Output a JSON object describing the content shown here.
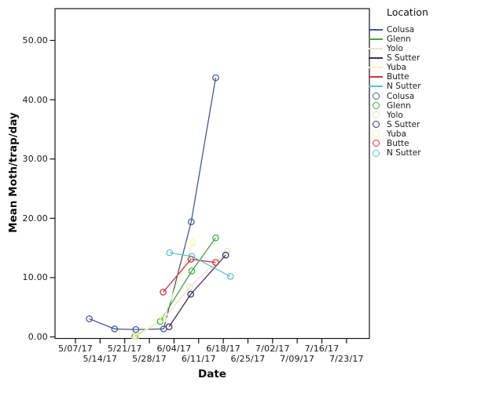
{
  "window": {
    "background": "#ffffff"
  },
  "chart_data": {
    "type": "line",
    "title": "",
    "xlabel": "Date",
    "ylabel": "Mean Moth/trap/day",
    "legend_title": "Location",
    "legend_position": "right-outside",
    "grid": false,
    "marker": "open-circle",
    "x_unit": "tick index: 0 = 5/07/17, 1 unit = 7 days",
    "x_axis": {
      "ticklabels": [
        "5/07/17",
        "5/14/17",
        "5/21/17",
        "5/28/17",
        "6/04/17",
        "6/11/17",
        "6/18/17",
        "6/25/17",
        "7/02/17",
        "7/09/17",
        "7/16/17",
        "7/23/17"
      ],
      "label_stagger": "two rows"
    },
    "y_axis": {
      "ticks": [
        0,
        10,
        20,
        30,
        40,
        50
      ],
      "ticklabels": [
        "0.00",
        "10.00",
        "20.00",
        "30.00",
        "40.00",
        "50.00"
      ],
      "lim": [
        0,
        55.5
      ]
    },
    "series": [
      {
        "name": "Colusa",
        "color": "#46598F",
        "points": [
          [
            0.56,
            3.05
          ],
          [
            1.59,
            1.35
          ],
          [
            2.45,
            1.25
          ],
          [
            3.58,
            1.35
          ],
          [
            4.7,
            19.4
          ],
          [
            5.69,
            43.7
          ]
        ]
      },
      {
        "name": "Glenn",
        "color": "#43A648",
        "points": [
          [
            2.41,
            0.1
          ],
          [
            3.44,
            2.6
          ],
          [
            4.72,
            11.1
          ],
          [
            5.69,
            16.7
          ]
        ]
      },
      {
        "name": "Yolo",
        "color": "#E9E4CC",
        "points": [
          [
            2.38,
            0.15
          ],
          [
            3.58,
            3.0
          ],
          [
            4.63,
            8.4
          ],
          [
            6.16,
            14.4
          ]
        ]
      },
      {
        "name": "S Sutter",
        "color": "#3F2B63",
        "points": [
          [
            3.8,
            1.7
          ],
          [
            4.68,
            7.2
          ],
          [
            6.1,
            13.8
          ]
        ]
      },
      {
        "name": "Yuba",
        "color": "#F3F5AE",
        "points": [
          [
            2.46,
            0.05
          ],
          [
            3.57,
            3.0
          ],
          [
            4.76,
            15.9
          ]
        ]
      },
      {
        "name": "Butte",
        "color": "#C7353F",
        "points": [
          [
            3.56,
            7.55
          ],
          [
            4.69,
            13.1
          ],
          [
            5.69,
            12.55
          ]
        ]
      },
      {
        "name": "N Sutter",
        "color": "#5FBFC9",
        "points": [
          [
            3.82,
            14.2
          ],
          [
            4.72,
            13.6
          ],
          [
            6.29,
            10.2
          ]
        ]
      }
    ],
    "legend_entries_lines": [
      "Colusa",
      "Glenn",
      "Yolo",
      "S Sutter",
      "Yuba",
      "Butte",
      "N Sutter"
    ],
    "legend_entries_markers": [
      "Colusa",
      "Glenn",
      "Yolo",
      "S Sutter",
      "Yuba",
      "Butte",
      "N Sutter"
    ]
  }
}
